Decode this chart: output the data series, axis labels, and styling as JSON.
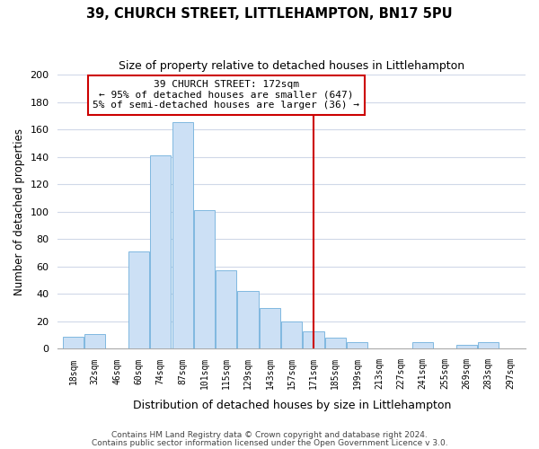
{
  "title": "39, CHURCH STREET, LITTLEHAMPTON, BN17 5PU",
  "subtitle": "Size of property relative to detached houses in Littlehampton",
  "xlabel": "Distribution of detached houses by size in Littlehampton",
  "ylabel": "Number of detached properties",
  "bar_color": "#cce0f5",
  "bar_edge_color": "#7fb8e0",
  "background_color": "#ffffff",
  "grid_color": "#d0d8e8",
  "bin_labels": [
    "18sqm",
    "32sqm",
    "46sqm",
    "60sqm",
    "74sqm",
    "87sqm",
    "101sqm",
    "115sqm",
    "129sqm",
    "143sqm",
    "157sqm",
    "171sqm",
    "185sqm",
    "199sqm",
    "213sqm",
    "227sqm",
    "241sqm",
    "255sqm",
    "269sqm",
    "283sqm",
    "297sqm"
  ],
  "bar_heights": [
    9,
    11,
    0,
    71,
    141,
    165,
    101,
    57,
    42,
    30,
    20,
    13,
    8,
    5,
    0,
    0,
    5,
    0,
    3,
    5,
    0
  ],
  "ylim": [
    0,
    200
  ],
  "yticks": [
    0,
    20,
    40,
    60,
    80,
    100,
    120,
    140,
    160,
    180,
    200
  ],
  "property_line_color": "#cc0000",
  "annotation_title": "39 CHURCH STREET: 172sqm",
  "annotation_line1": "← 95% of detached houses are smaller (647)",
  "annotation_line2": "5% of semi-detached houses are larger (36) →",
  "annotation_box_color": "#ffffff",
  "annotation_box_edge_color": "#cc0000",
  "footer_line1": "Contains HM Land Registry data © Crown copyright and database right 2024.",
  "footer_line2": "Contains public sector information licensed under the Open Government Licence v 3.0."
}
